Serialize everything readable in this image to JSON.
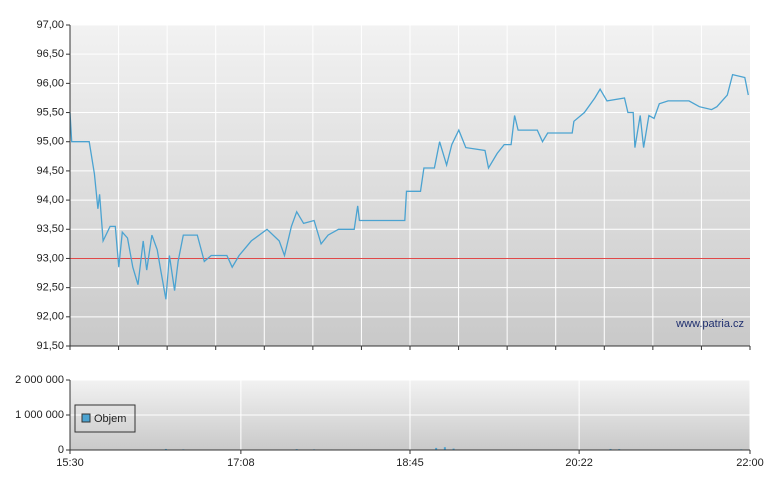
{
  "chart_data": [
    {
      "type": "line",
      "watermark": "www.patria.cz",
      "x": [
        "15:30",
        "15:31",
        "15:41",
        "15:44",
        "15:46",
        "15:47",
        "15:49",
        "15:53",
        "15:56",
        "15:58",
        "16:00",
        "16:03",
        "16:06",
        "16:09",
        "16:12",
        "16:14",
        "16:17",
        "16:20",
        "16:22",
        "16:25",
        "16:27",
        "16:30",
        "16:32",
        "16:35",
        "16:43",
        "16:47",
        "16:51",
        "17:00",
        "17:03",
        "17:07",
        "17:14",
        "17:23",
        "17:30",
        "17:33",
        "17:37",
        "17:40",
        "17:44",
        "17:50",
        "17:54",
        "17:58",
        "18:04",
        "18:13",
        "18:15",
        "18:16",
        "18:42",
        "18:43",
        "18:51",
        "18:53",
        "18:59",
        "19:02",
        "19:06",
        "19:09",
        "19:13",
        "19:17",
        "19:28",
        "19:30",
        "19:35",
        "19:39",
        "19:43",
        "19:45",
        "19:47",
        "19:58",
        "20:01",
        "20:04",
        "20:18",
        "20:19",
        "20:25",
        "20:31",
        "20:34",
        "20:38",
        "20:48",
        "20:50",
        "20:53",
        "20:54",
        "20:57",
        "20:59",
        "21:02",
        "21:05",
        "21:08",
        "21:13",
        "21:25",
        "21:31",
        "21:38",
        "21:41",
        "21:47",
        "21:50",
        "21:57",
        "21:59"
      ],
      "series": [
        {
          "color": "#4ba3d1",
          "values": [
            95.5,
            95.0,
            95.0,
            94.45,
            93.85,
            94.1,
            93.3,
            93.55,
            93.55,
            92.85,
            93.45,
            93.35,
            92.85,
            92.55,
            93.3,
            92.8,
            93.4,
            93.15,
            92.8,
            92.3,
            93.05,
            92.45,
            92.95,
            93.4,
            93.4,
            92.95,
            93.05,
            93.05,
            92.85,
            93.05,
            93.3,
            93.5,
            93.3,
            93.05,
            93.55,
            93.8,
            93.6,
            93.65,
            93.25,
            93.4,
            93.5,
            93.5,
            93.9,
            93.65,
            93.65,
            94.15,
            94.15,
            94.55,
            94.55,
            95.0,
            94.6,
            94.95,
            95.2,
            94.9,
            94.85,
            94.55,
            94.8,
            94.95,
            94.95,
            95.45,
            95.2,
            95.2,
            95.0,
            95.15,
            95.15,
            95.35,
            95.5,
            95.75,
            95.9,
            95.7,
            95.75,
            95.5,
            95.5,
            94.9,
            95.45,
            94.9,
            95.45,
            95.4,
            95.65,
            95.7,
            95.7,
            95.6,
            95.55,
            95.6,
            95.8,
            96.15,
            96.1,
            95.8
          ]
        }
      ],
      "reference": {
        "value": 93,
        "color": "#e04848"
      },
      "xlim": [
        "15:30",
        "22:00"
      ],
      "ylim": [
        91.5,
        97
      ],
      "yticks": [
        {
          "value": 91.5,
          "label": "91,50"
        },
        {
          "value": 92,
          "label": "92,00"
        },
        {
          "value": 92.5,
          "label": "92,50"
        },
        {
          "value": 93,
          "label": "93,00"
        },
        {
          "value": 93.5,
          "label": "93,50"
        },
        {
          "value": 94,
          "label": "94,00"
        },
        {
          "value": 94.5,
          "label": "94,50"
        },
        {
          "value": 95,
          "label": "95,00"
        },
        {
          "value": 95.5,
          "label": "95,50"
        },
        {
          "value": 96,
          "label": "96,00"
        },
        {
          "value": 96.5,
          "label": "96,50"
        },
        {
          "value": 97,
          "label": "97,00"
        }
      ],
      "grid": true
    },
    {
      "type": "bar",
      "x": [
        "16:25",
        "16:35",
        "17:40",
        "17:50",
        "18:00",
        "19:00",
        "19:05",
        "19:10",
        "20:40",
        "20:45",
        "21:55"
      ],
      "series": [
        {
          "name": "Objem",
          "color": "#4ba3d1",
          "values": [
            30000,
            20000,
            25000,
            20000,
            15000,
            60000,
            80000,
            40000,
            30000,
            25000,
            20000
          ]
        }
      ],
      "xlim": [
        "15:30",
        "22:00"
      ],
      "xticks": [
        "15:30",
        "17:08",
        "18:45",
        "20:22",
        "22:00"
      ],
      "ylim": [
        0,
        2000000
      ],
      "yticks": [
        0,
        {
          "value": 1000000,
          "label": "1 000 000"
        },
        {
          "value": 2000000,
          "label": "2 000 000"
        }
      ],
      "grid": true
    }
  ]
}
